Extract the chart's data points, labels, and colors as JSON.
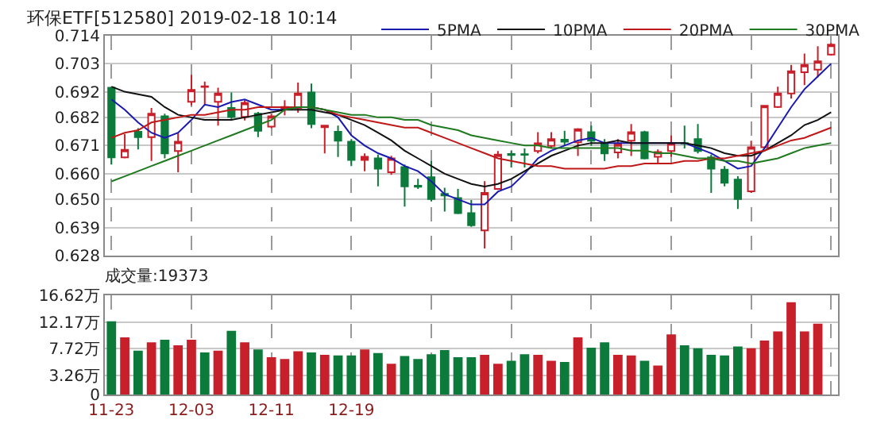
{
  "chart_data": [
    {
      "type": "candlestick",
      "title": "环保ETF[512580] 2019-02-18 10:14",
      "categories": [
        null,
        null,
        null,
        null,
        null,
        null,
        null,
        null,
        null,
        null,
        null,
        null,
        null,
        null,
        null,
        null,
        null,
        null,
        null,
        null,
        null,
        null,
        null,
        null,
        null,
        null,
        null,
        null,
        null,
        null,
        null,
        null,
        null,
        null,
        null,
        null,
        null,
        null,
        null,
        null,
        null,
        null,
        null,
        null,
        null,
        null,
        null,
        null,
        null,
        null,
        null,
        null,
        null,
        null,
        null
      ],
      "ohlc": [
        [
          0.6936,
          0.694,
          0.6636,
          0.6664
        ],
        [
          0.6664,
          0.6755,
          0.666,
          0.6693
        ],
        [
          0.6764,
          0.6778,
          0.6695,
          0.6743
        ],
        [
          0.6743,
          0.6857,
          0.665,
          0.6834
        ],
        [
          0.6824,
          0.6834,
          0.666,
          0.6679
        ],
        [
          0.6689,
          0.6758,
          0.6606,
          0.6725
        ],
        [
          0.6881,
          0.6986,
          0.6867,
          0.6927
        ],
        [
          0.6941,
          0.696,
          0.6871,
          0.6939
        ],
        [
          0.6881,
          0.6936,
          0.6788,
          0.6913
        ],
        [
          0.6857,
          0.6917,
          0.6814,
          0.6822
        ],
        [
          0.6822,
          0.6887,
          0.6808,
          0.6877
        ],
        [
          0.6834,
          0.6841,
          0.6743,
          0.6768
        ],
        [
          0.6784,
          0.6834,
          0.6778,
          0.6824
        ],
        [
          0.6853,
          0.6887,
          0.6828,
          0.6861
        ],
        [
          0.6857,
          0.6956,
          0.6838,
          0.6913
        ],
        [
          0.6917,
          0.6952,
          0.6778,
          0.6794
        ],
        [
          0.6782,
          0.6788,
          0.6679,
          0.6788
        ],
        [
          0.6764,
          0.6788,
          0.6665,
          0.6729
        ],
        [
          0.6725,
          0.6735,
          0.663,
          0.6654
        ],
        [
          0.6654,
          0.6679,
          0.661,
          0.6666
        ],
        [
          0.666,
          0.6675,
          0.6551,
          0.662
        ],
        [
          0.6606,
          0.667,
          0.6596,
          0.666
        ],
        [
          0.6626,
          0.6636,
          0.6472,
          0.6551
        ],
        [
          0.6553,
          0.658,
          0.6541,
          0.6549
        ],
        [
          0.6586,
          0.665,
          0.6492,
          0.6501
        ],
        [
          0.6521,
          0.6545,
          0.6452,
          0.6515
        ],
        [
          0.6505,
          0.6541,
          0.6442,
          0.6446
        ],
        [
          0.6446,
          0.6497,
          0.6393,
          0.6399
        ],
        [
          0.6379,
          0.6571,
          0.6308,
          0.6525
        ],
        [
          0.6541,
          0.6689,
          0.6537,
          0.6675
        ],
        [
          0.6677,
          0.6689,
          0.6624,
          0.6673
        ],
        [
          0.6676,
          0.6699,
          0.6624,
          0.6674
        ],
        [
          0.6689,
          0.6762,
          0.6679,
          0.6719
        ],
        [
          0.6709,
          0.6762,
          0.6699,
          0.6735
        ],
        [
          0.6733,
          0.6768,
          0.6709,
          0.6725
        ],
        [
          0.6723,
          0.6778,
          0.6669,
          0.6774
        ],
        [
          0.6762,
          0.6788,
          0.6709,
          0.6729
        ],
        [
          0.6715,
          0.6735,
          0.665,
          0.6679
        ],
        [
          0.6683,
          0.6735,
          0.666,
          0.6715
        ],
        [
          0.6729,
          0.6794,
          0.6669,
          0.6762
        ],
        [
          0.6762,
          0.6768,
          0.6656,
          0.666
        ],
        [
          0.6666,
          0.6695,
          0.664,
          0.6685
        ],
        [
          0.6689,
          0.6749,
          0.6666,
          0.6719
        ],
        [
          0.672,
          0.6788,
          0.6699,
          0.6718
        ],
        [
          0.6735,
          0.6794,
          0.6679,
          0.6689
        ],
        [
          0.6664,
          0.6675,
          0.6525,
          0.662
        ],
        [
          0.6616,
          0.663,
          0.6551,
          0.6565
        ],
        [
          0.6577,
          0.659,
          0.6462,
          0.6501
        ],
        [
          0.6531,
          0.6729,
          0.6525,
          0.6703
        ],
        [
          0.6703,
          0.6867,
          0.6699,
          0.6865
        ],
        [
          0.6861,
          0.694,
          0.6857,
          0.6913
        ],
        [
          0.6913,
          0.7025,
          0.6893,
          0.7
        ],
        [
          0.6996,
          0.7069,
          0.6946,
          0.7025
        ],
        [
          0.7006,
          0.7098,
          0.6976,
          0.7039
        ],
        [
          0.7065,
          0.711,
          0.7061,
          0.7104
        ]
      ],
      "colors": [
        "#0b7a3a",
        "#c8202a",
        "#0b7a3a",
        "#c8202a",
        "#0b7a3a",
        "#c8202a",
        "#c8202a",
        "#c8202a",
        "#c8202a",
        "#0b7a3a",
        "#c8202a",
        "#0b7a3a",
        "#c8202a",
        "#c8202a",
        "#c8202a",
        "#0b7a3a",
        "#c8202a",
        "#0b7a3a",
        "#0b7a3a",
        "#c8202a",
        "#0b7a3a",
        "#c8202a",
        "#0b7a3a",
        "#0b7a3a",
        "#0b7a3a",
        "#0b7a3a",
        "#0b7a3a",
        "#0b7a3a",
        "#c8202a",
        "#c8202a",
        "#0b7a3a",
        "#0b7a3a",
        "#c8202a",
        "#c8202a",
        "#0b7a3a",
        "#c8202a",
        "#0b7a3a",
        "#0b7a3a",
        "#c8202a",
        "#c8202a",
        "#0b7a3a",
        "#c8202a",
        "#c8202a",
        "#0b7a3a",
        "#0b7a3a",
        "#0b7a3a",
        "#0b7a3a",
        "#0b7a3a",
        "#c8202a",
        "#c8202a",
        "#c8202a",
        "#c8202a",
        "#c8202a",
        "#c8202a",
        "#c8202a"
      ],
      "series": [
        {
          "type": "line",
          "name": "5PMA",
          "color": "#1a1ab0",
          "values": [
            0.689,
            0.685,
            0.68,
            0.676,
            0.674,
            0.676,
            0.681,
            0.687,
            0.686,
            0.688,
            0.689,
            0.687,
            0.685,
            0.685,
            0.686,
            0.686,
            0.685,
            0.682,
            0.675,
            0.671,
            0.668,
            0.666,
            0.663,
            0.661,
            0.657,
            0.652,
            0.65,
            0.648,
            0.648,
            0.653,
            0.655,
            0.66,
            0.666,
            0.669,
            0.671,
            0.673,
            0.674,
            0.672,
            0.672,
            0.672,
            0.672,
            0.672,
            0.672,
            0.672,
            0.67,
            0.668,
            0.665,
            0.662,
            0.663,
            0.67,
            0.678,
            0.686,
            0.693,
            0.698,
            0.703
          ]
        },
        {
          "type": "line",
          "name": "10PMA",
          "color": "#111111",
          "values": [
            0.694,
            0.692,
            0.691,
            0.69,
            0.686,
            0.683,
            0.682,
            0.681,
            0.681,
            0.681,
            0.682,
            0.683,
            0.684,
            0.685,
            0.685,
            0.685,
            0.684,
            0.683,
            0.681,
            0.679,
            0.676,
            0.673,
            0.669,
            0.666,
            0.663,
            0.66,
            0.658,
            0.656,
            0.655,
            0.656,
            0.658,
            0.661,
            0.664,
            0.667,
            0.669,
            0.671,
            0.672,
            0.672,
            0.673,
            0.672,
            0.672,
            0.672,
            0.672,
            0.672,
            0.671,
            0.67,
            0.668,
            0.667,
            0.667,
            0.669,
            0.672,
            0.675,
            0.679,
            0.681,
            0.684
          ]
        },
        {
          "type": "line",
          "name": "20PMA",
          "color": "#c01818",
          "values": [
            0.674,
            0.676,
            0.677,
            0.68,
            0.681,
            0.682,
            0.683,
            0.683,
            0.684,
            0.685,
            0.685,
            0.686,
            0.686,
            0.686,
            0.686,
            0.686,
            0.685,
            0.683,
            0.682,
            0.681,
            0.68,
            0.679,
            0.678,
            0.678,
            0.676,
            0.674,
            0.672,
            0.67,
            0.668,
            0.666,
            0.665,
            0.664,
            0.663,
            0.663,
            0.662,
            0.662,
            0.662,
            0.662,
            0.663,
            0.663,
            0.664,
            0.664,
            0.664,
            0.665,
            0.665,
            0.666,
            0.666,
            0.667,
            0.668,
            0.669,
            0.671,
            0.673,
            0.674,
            0.676,
            0.678
          ]
        },
        {
          "type": "line",
          "name": "30PMA",
          "color": "#1f7a1f",
          "values": [
            0.657,
            0.659,
            0.661,
            0.663,
            0.665,
            0.667,
            0.669,
            0.671,
            0.673,
            0.675,
            0.677,
            0.679,
            0.681,
            0.685,
            0.686,
            0.686,
            0.685,
            0.684,
            0.683,
            0.683,
            0.682,
            0.682,
            0.681,
            0.681,
            0.679,
            0.678,
            0.677,
            0.675,
            0.674,
            0.673,
            0.672,
            0.671,
            0.671,
            0.67,
            0.67,
            0.67,
            0.67,
            0.67,
            0.67,
            0.669,
            0.669,
            0.668,
            0.668,
            0.667,
            0.666,
            0.666,
            0.665,
            0.665,
            0.664,
            0.665,
            0.666,
            0.668,
            0.67,
            0.671,
            0.672
          ]
        }
      ],
      "ylim": [
        0.628,
        0.714
      ],
      "yticks": [
        0.628,
        0.639,
        {
          "value": 0.65,
          "label": "0.650"
        },
        {
          "value": 0.66,
          "label": "0.660"
        },
        0.671,
        0.682,
        0.692,
        0.703,
        0.714
      ],
      "grid": true,
      "legend": "top right",
      "tick_labels": "y"
    },
    {
      "type": "bar",
      "title": "成交量:19373",
      "categories": [
        "11-23",
        null,
        null,
        null,
        null,
        null,
        "12-03",
        null,
        null,
        null,
        null,
        null,
        "12-11",
        null,
        null,
        null,
        null,
        null,
        "12-19",
        null,
        null,
        null,
        null,
        null,
        null,
        null,
        null,
        null,
        null,
        null,
        null,
        null,
        null,
        null,
        null,
        null,
        null,
        null,
        null,
        null,
        null,
        null,
        null,
        null,
        null,
        null,
        null,
        null,
        null,
        null,
        null,
        null,
        null,
        null,
        null
      ],
      "values": [
        12.3,
        9.6,
        7.4,
        8.8,
        9.2,
        8.3,
        9.2,
        7.1,
        7.4,
        10.7,
        8.8,
        7.6,
        6.3,
        6.0,
        7.3,
        7.1,
        6.7,
        6.6,
        6.6,
        7.6,
        7.0,
        5.2,
        6.5,
        6.0,
        6.8,
        7.5,
        6.3,
        6.3,
        6.7,
        5.2,
        5.7,
        6.8,
        6.7,
        5.7,
        5.5,
        9.6,
        7.9,
        8.8,
        6.7,
        6.6,
        5.7,
        4.9,
        10.1,
        8.3,
        7.8,
        6.7,
        6.6,
        8.1,
        7.8,
        9.1,
        10.6,
        15.5,
        10.6,
        11.9,
        null
      ],
      "colors": [
        "#0b7a3a",
        "#c8202a",
        "#0b7a3a",
        "#c8202a",
        "#0b7a3a",
        "#c8202a",
        "#c8202a",
        "#0b7a3a",
        "#c8202a",
        "#0b7a3a",
        "#c8202a",
        "#0b7a3a",
        "#c8202a",
        "#c8202a",
        "#c8202a",
        "#0b7a3a",
        "#c8202a",
        "#0b7a3a",
        "#0b7a3a",
        "#c8202a",
        "#0b7a3a",
        "#c8202a",
        "#0b7a3a",
        "#0b7a3a",
        "#0b7a3a",
        "#0b7a3a",
        "#0b7a3a",
        "#0b7a3a",
        "#c8202a",
        "#c8202a",
        "#0b7a3a",
        "#0b7a3a",
        "#c8202a",
        "#c8202a",
        "#0b7a3a",
        "#c8202a",
        "#0b7a3a",
        "#0b7a3a",
        "#c8202a",
        "#c8202a",
        "#0b7a3a",
        "#c8202a",
        "#c8202a",
        "#0b7a3a",
        "#0b7a3a",
        "#0b7a3a",
        "#0b7a3a",
        "#0b7a3a",
        "#c8202a",
        "#c8202a",
        "#c8202a",
        "#c8202a",
        "#c8202a",
        "#c8202a",
        "#c8202a"
      ],
      "ylim": [
        0,
        16.62
      ],
      "yticks": [
        0,
        {
          "value": 3.26,
          "label": "3.26万"
        },
        {
          "value": 7.72,
          "label": "7.72万"
        },
        {
          "value": 12.17,
          "label": "12.17万"
        },
        {
          "value": 16.62,
          "label": "16.62万"
        }
      ],
      "grid": true
    }
  ]
}
